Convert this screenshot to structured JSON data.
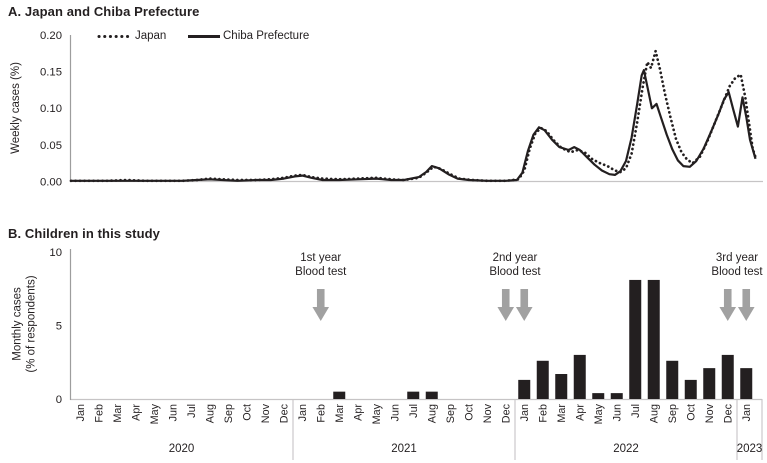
{
  "colors": {
    "ink": "#231f20",
    "arrow_gray": "#a1a1a1",
    "axis_dark": "#9d9d9d",
    "axis_light": "#c6c4c5"
  },
  "panelA": {
    "title": "A. Japan and Chiba Prefecture",
    "ylabel": "Weekly cases (%)",
    "y_tick_labels": [
      "0.20",
      "0.15",
      "0.10",
      "0.05",
      "0.00"
    ],
    "legend": [
      {
        "label": "Japan",
        "style": "dotted"
      },
      {
        "label": "Chiba Prefecture",
        "style": "solid"
      }
    ]
  },
  "panelB": {
    "title": "B. Children in this study",
    "ylabel_line1": "Monthly cases",
    "ylabel_line2": "(% of respondents)",
    "y_tick_labels": [
      "10",
      "5",
      "0"
    ]
  },
  "chart_data": [
    {
      "type": "line",
      "title": "A. Japan and Chiba Prefecture",
      "ylabel": "Weekly cases (%)",
      "ylim": [
        0,
        0.2
      ],
      "y_ticks": [
        0,
        0.05,
        0.1,
        0.15,
        0.2
      ],
      "x_unit": "months since Jan 2020",
      "x_span": [
        "Jan 2020",
        "Jan 2023"
      ],
      "legend_position": "top",
      "grid": false,
      "series": [
        {
          "name": "Japan",
          "style": "dotted",
          "points": [
            [
              0,
              0.001
            ],
            [
              1,
              0.001
            ],
            [
              2,
              0.001
            ],
            [
              3,
              0.002
            ],
            [
              4,
              0.001
            ],
            [
              5,
              0.001
            ],
            [
              6,
              0.001
            ],
            [
              6.8,
              0.002
            ],
            [
              7.5,
              0.004
            ],
            [
              8.2,
              0.003
            ],
            [
              9,
              0.002
            ],
            [
              10,
              0.002
            ],
            [
              10.8,
              0.003
            ],
            [
              11.5,
              0.005
            ],
            [
              12.1,
              0.008
            ],
            [
              12.5,
              0.009
            ],
            [
              13,
              0.006
            ],
            [
              13.6,
              0.004
            ],
            [
              14.5,
              0.003
            ],
            [
              15.5,
              0.004
            ],
            [
              16.5,
              0.005
            ],
            [
              17.3,
              0.003
            ],
            [
              18,
              0.002
            ],
            [
              18.8,
              0.005
            ],
            [
              19.2,
              0.012
            ],
            [
              19.6,
              0.02
            ],
            [
              20,
              0.017
            ],
            [
              20.5,
              0.01
            ],
            [
              21,
              0.004
            ],
            [
              21.7,
              0.002
            ],
            [
              22.5,
              0.001
            ],
            [
              23.5,
              0.001
            ],
            [
              24.2,
              0.003
            ],
            [
              24.5,
              0.015
            ],
            [
              24.8,
              0.045
            ],
            [
              25.1,
              0.066
            ],
            [
              25.4,
              0.073
            ],
            [
              25.7,
              0.069
            ],
            [
              26.1,
              0.056
            ],
            [
              26.5,
              0.046
            ],
            [
              27,
              0.04
            ],
            [
              27.4,
              0.043
            ],
            [
              27.8,
              0.039
            ],
            [
              28.2,
              0.03
            ],
            [
              28.6,
              0.025
            ],
            [
              29,
              0.021
            ],
            [
              29.4,
              0.015
            ],
            [
              29.7,
              0.013
            ],
            [
              30,
              0.018
            ],
            [
              30.3,
              0.038
            ],
            [
              30.6,
              0.08
            ],
            [
              30.9,
              0.128
            ],
            [
              31.15,
              0.163
            ],
            [
              31.35,
              0.155
            ],
            [
              31.6,
              0.178
            ],
            [
              31.85,
              0.152
            ],
            [
              32.1,
              0.12
            ],
            [
              32.4,
              0.088
            ],
            [
              32.7,
              0.058
            ],
            [
              33,
              0.04
            ],
            [
              33.3,
              0.03
            ],
            [
              33.6,
              0.025
            ],
            [
              34,
              0.034
            ],
            [
              34.4,
              0.055
            ],
            [
              34.8,
              0.08
            ],
            [
              35.2,
              0.105
            ],
            [
              35.6,
              0.13
            ],
            [
              35.9,
              0.141
            ],
            [
              36.2,
              0.146
            ],
            [
              36.45,
              0.115
            ],
            [
              36.65,
              0.08
            ],
            [
              36.85,
              0.045
            ],
            [
              37,
              0.033
            ]
          ]
        },
        {
          "name": "Chiba Prefecture",
          "style": "solid",
          "points": [
            [
              0,
              0.001
            ],
            [
              1,
              0.001
            ],
            [
              2,
              0.001
            ],
            [
              3,
              0.001
            ],
            [
              4,
              0.001
            ],
            [
              5,
              0.001
            ],
            [
              6,
              0.001
            ],
            [
              6.8,
              0.002
            ],
            [
              7.5,
              0.003
            ],
            [
              8.2,
              0.002
            ],
            [
              9,
              0.001
            ],
            [
              10,
              0.002
            ],
            [
              10.8,
              0.002
            ],
            [
              11.5,
              0.004
            ],
            [
              12.1,
              0.007
            ],
            [
              12.5,
              0.008
            ],
            [
              13,
              0.005
            ],
            [
              13.6,
              0.002
            ],
            [
              14.5,
              0.002
            ],
            [
              15.5,
              0.003
            ],
            [
              16.5,
              0.004
            ],
            [
              17.3,
              0.002
            ],
            [
              18,
              0.002
            ],
            [
              18.8,
              0.006
            ],
            [
              19.2,
              0.013
            ],
            [
              19.5,
              0.021
            ],
            [
              19.9,
              0.018
            ],
            [
              20.4,
              0.01
            ],
            [
              20.9,
              0.004
            ],
            [
              21.5,
              0.002
            ],
            [
              22.5,
              0.001
            ],
            [
              23.5,
              0.001
            ],
            [
              24.1,
              0.002
            ],
            [
              24.4,
              0.012
            ],
            [
              24.7,
              0.042
            ],
            [
              25,
              0.064
            ],
            [
              25.3,
              0.074
            ],
            [
              25.6,
              0.07
            ],
            [
              26,
              0.057
            ],
            [
              26.4,
              0.047
            ],
            [
              26.9,
              0.043
            ],
            [
              27.2,
              0.047
            ],
            [
              27.5,
              0.043
            ],
            [
              27.9,
              0.033
            ],
            [
              28.3,
              0.023
            ],
            [
              28.7,
              0.015
            ],
            [
              29.1,
              0.01
            ],
            [
              29.4,
              0.009
            ],
            [
              29.7,
              0.014
            ],
            [
              30,
              0.028
            ],
            [
              30.3,
              0.06
            ],
            [
              30.6,
              0.105
            ],
            [
              30.85,
              0.145
            ],
            [
              30.97,
              0.152
            ],
            [
              31.15,
              0.13
            ],
            [
              31.4,
              0.1
            ],
            [
              31.65,
              0.106
            ],
            [
              31.9,
              0.087
            ],
            [
              32.2,
              0.064
            ],
            [
              32.5,
              0.044
            ],
            [
              32.8,
              0.029
            ],
            [
              33.1,
              0.021
            ],
            [
              33.45,
              0.02
            ],
            [
              33.8,
              0.028
            ],
            [
              34.2,
              0.045
            ],
            [
              34.6,
              0.068
            ],
            [
              35,
              0.092
            ],
            [
              35.3,
              0.112
            ],
            [
              35.55,
              0.122
            ],
            [
              35.8,
              0.098
            ],
            [
              36.05,
              0.075
            ],
            [
              36.3,
              0.115
            ],
            [
              36.5,
              0.088
            ],
            [
              36.7,
              0.057
            ],
            [
              37,
              0.031
            ]
          ]
        }
      ]
    },
    {
      "type": "bar",
      "title": "B. Children in this study",
      "ylabel": "Monthly cases (% of respondents)",
      "ylim": [
        0,
        10
      ],
      "y_ticks": [
        0,
        5,
        10
      ],
      "grid": false,
      "categories": [
        "Jan",
        "Feb",
        "Mar",
        "Apr",
        "May",
        "Jun",
        "Jul",
        "Aug",
        "Sep",
        "Oct",
        "Nov",
        "Dec",
        "Jan",
        "Feb",
        "Mar",
        "Apr",
        "May",
        "Jun",
        "Jul",
        "Aug",
        "Sep",
        "Oct",
        "Nov",
        "Dec",
        "Jan",
        "Feb",
        "Mar",
        "Apr",
        "May",
        "Jun",
        "Jul",
        "Aug",
        "Sep",
        "Oct",
        "Nov",
        "Dec",
        "Jan"
      ],
      "year_groups": [
        {
          "label": "2020",
          "start_index": 0,
          "months": 12
        },
        {
          "label": "2021",
          "start_index": 12,
          "months": 12
        },
        {
          "label": "2022",
          "start_index": 24,
          "months": 12
        },
        {
          "label": "2023",
          "start_index": 36,
          "months": 1
        }
      ],
      "values": [
        0,
        0,
        0,
        0,
        0,
        0,
        0,
        0,
        0,
        0,
        0,
        0,
        0,
        0,
        0.5,
        0,
        0,
        0,
        0.5,
        0.5,
        0,
        0,
        0,
        0,
        1.3,
        2.6,
        1.7,
        3.0,
        0.4,
        0.4,
        8.1,
        8.1,
        2.6,
        1.3,
        2.1,
        3.0,
        2.1
      ],
      "annotations": [
        {
          "line1": "1st year",
          "line2": "Blood test",
          "arrow_months": [
            13
          ]
        },
        {
          "line1": "2nd year",
          "line2": "Blood test",
          "arrow_months": [
            23,
            24
          ]
        },
        {
          "line1": "3rd year",
          "line2": "Blood test",
          "arrow_months": [
            35,
            36
          ]
        }
      ]
    }
  ]
}
